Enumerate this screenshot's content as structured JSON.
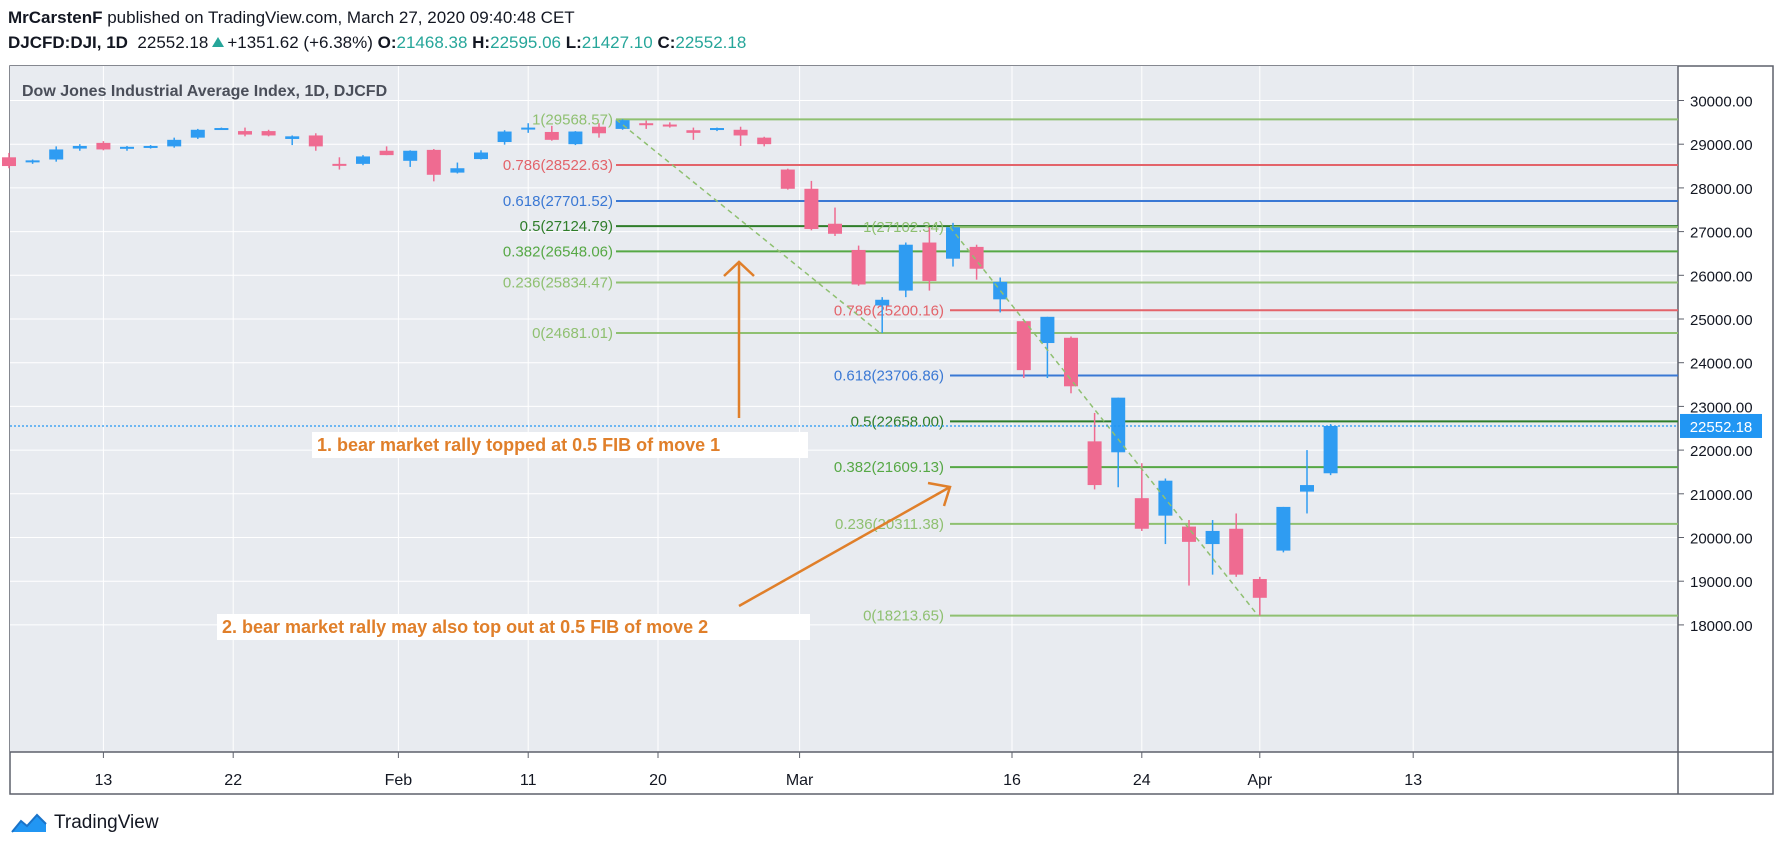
{
  "header": {
    "author": "MrCarstenF",
    "published_text": "published on TradingView.com, March 27, 2020 09:40:48 CET",
    "symbol": "DJCFD:DJI, 1D",
    "last": "22552.18",
    "change": "+1351.62 (+6.38%)",
    "o_label": "O:",
    "o": "21468.38",
    "h_label": "H:",
    "h": "22595.06",
    "l_label": "L:",
    "l": "21427.10",
    "c_label": "C:",
    "c": "22552.18"
  },
  "footer": {
    "brand": "TradingView"
  },
  "colors": {
    "up": "#2f9cf2",
    "down": "#ef6b91",
    "grid": "#e8ebf0",
    "axis": "#5d606b",
    "fib_1": "#8fc071",
    "fib_786": "#e3636a",
    "fib_618": "#3a78d4",
    "fib_5": "#2f7d2a",
    "fib_382": "#56a845",
    "fib_236": "#8fc071",
    "fib_0": "#8fc071",
    "annotation": "#e07f2a",
    "price_tag": "#2196f3"
  },
  "chart_data": {
    "type": "candlestick",
    "title": "Dow Jones Industrial Average Index, 1D, DJCFD",
    "ylim": [
      17000,
      30800
    ],
    "y_ticks": [
      "30000.00",
      "29000.00",
      "28000.00",
      "27000.00",
      "26000.00",
      "25000.00",
      "24000.00",
      "23000.00",
      "22000.00",
      "21000.00",
      "20000.00",
      "19000.00",
      "18000.00"
    ],
    "x_ticks": [
      "13",
      "22",
      "Feb",
      "11",
      "20",
      "Mar",
      "16",
      "24",
      "Apr",
      "13"
    ],
    "last_price_label": "22552.18",
    "candles": [
      {
        "o": 28700,
        "h": 28800,
        "l": 28450,
        "c": 28500
      },
      {
        "o": 28600,
        "h": 28650,
        "l": 28550,
        "c": 28630
      },
      {
        "o": 28650,
        "h": 28950,
        "l": 28600,
        "c": 28880
      },
      {
        "o": 28900,
        "h": 29000,
        "l": 28850,
        "c": 28960
      },
      {
        "o": 29030,
        "h": 29070,
        "l": 28860,
        "c": 28880
      },
      {
        "o": 28900,
        "h": 28960,
        "l": 28850,
        "c": 28940
      },
      {
        "o": 28940,
        "h": 28980,
        "l": 28900,
        "c": 28960
      },
      {
        "o": 28950,
        "h": 29150,
        "l": 28920,
        "c": 29100
      },
      {
        "o": 29150,
        "h": 29350,
        "l": 29120,
        "c": 29330
      },
      {
        "o": 29350,
        "h": 29380,
        "l": 29330,
        "c": 29370
      },
      {
        "o": 29300,
        "h": 29380,
        "l": 29180,
        "c": 29220
      },
      {
        "o": 29300,
        "h": 29330,
        "l": 29180,
        "c": 29200
      },
      {
        "o": 29120,
        "h": 29200,
        "l": 28980,
        "c": 29180
      },
      {
        "o": 29200,
        "h": 29250,
        "l": 28850,
        "c": 28950
      },
      {
        "o": 28550,
        "h": 28700,
        "l": 28420,
        "c": 28530
      },
      {
        "o": 28550,
        "h": 28750,
        "l": 28520,
        "c": 28720
      },
      {
        "o": 28850,
        "h": 28950,
        "l": 28750,
        "c": 28750
      },
      {
        "o": 28620,
        "h": 28860,
        "l": 28480,
        "c": 28850
      },
      {
        "o": 28870,
        "h": 28890,
        "l": 28150,
        "c": 28300
      },
      {
        "o": 28350,
        "h": 28580,
        "l": 28330,
        "c": 28450
      },
      {
        "o": 28660,
        "h": 28860,
        "l": 28650,
        "c": 28810
      },
      {
        "o": 29050,
        "h": 29320,
        "l": 28990,
        "c": 29290
      },
      {
        "o": 29380,
        "h": 29480,
        "l": 29260,
        "c": 29380
      },
      {
        "o": 29280,
        "h": 29420,
        "l": 29080,
        "c": 29100
      },
      {
        "o": 29000,
        "h": 29300,
        "l": 28980,
        "c": 29290
      },
      {
        "o": 29400,
        "h": 29480,
        "l": 29150,
        "c": 29250
      },
      {
        "o": 29350,
        "h": 29570,
        "l": 29330,
        "c": 29550
      },
      {
        "o": 29480,
        "h": 29540,
        "l": 29350,
        "c": 29440
      },
      {
        "o": 29450,
        "h": 29500,
        "l": 29380,
        "c": 29420
      },
      {
        "o": 29320,
        "h": 29380,
        "l": 29100,
        "c": 29260
      },
      {
        "o": 29340,
        "h": 29380,
        "l": 29300,
        "c": 29370
      },
      {
        "o": 29330,
        "h": 29400,
        "l": 28960,
        "c": 29200
      },
      {
        "o": 29150,
        "h": 29170,
        "l": 28950,
        "c": 29000
      },
      {
        "o": 28420,
        "h": 28440,
        "l": 27960,
        "c": 27980
      },
      {
        "o": 27980,
        "h": 28160,
        "l": 27030,
        "c": 27060
      },
      {
        "o": 27180,
        "h": 27550,
        "l": 26900,
        "c": 26950
      },
      {
        "o": 26580,
        "h": 26680,
        "l": 25760,
        "c": 25790
      },
      {
        "o": 25310,
        "h": 25500,
        "l": 24680,
        "c": 25440
      },
      {
        "o": 25650,
        "h": 26750,
        "l": 25500,
        "c": 26700
      },
      {
        "o": 26750,
        "h": 27100,
        "l": 25650,
        "c": 25870
      },
      {
        "o": 26380,
        "h": 27200,
        "l": 26200,
        "c": 27100
      },
      {
        "o": 26650,
        "h": 26700,
        "l": 25900,
        "c": 26150
      },
      {
        "o": 25450,
        "h": 25950,
        "l": 25150,
        "c": 25850
      },
      {
        "o": 24950,
        "h": 24950,
        "l": 23650,
        "c": 23830
      },
      {
        "o": 24450,
        "h": 25050,
        "l": 23650,
        "c": 25050
      },
      {
        "o": 24570,
        "h": 24600,
        "l": 23300,
        "c": 23460
      },
      {
        "o": 22200,
        "h": 22850,
        "l": 21100,
        "c": 21200
      },
      {
        "o": 21950,
        "h": 23200,
        "l": 21150,
        "c": 23200
      },
      {
        "o": 20900,
        "h": 21700,
        "l": 20150,
        "c": 20200
      },
      {
        "o": 20500,
        "h": 21350,
        "l": 19850,
        "c": 21300
      },
      {
        "o": 20250,
        "h": 20400,
        "l": 18900,
        "c": 19900
      },
      {
        "o": 19850,
        "h": 20400,
        "l": 19150,
        "c": 20150
      },
      {
        "o": 20200,
        "h": 20550,
        "l": 19100,
        "c": 19150
      },
      {
        "o": 19050,
        "h": 19100,
        "l": 18213,
        "c": 18620
      },
      {
        "o": 19700,
        "h": 20700,
        "l": 19660,
        "c": 20700
      },
      {
        "o": 21050,
        "h": 22000,
        "l": 20550,
        "c": 21200
      },
      {
        "o": 21470,
        "h": 22595,
        "l": 21427,
        "c": 22552
      }
    ],
    "fib_levels": [
      {
        "label": "1(29568.57)",
        "value": 29568.57,
        "color": "#8fc071",
        "group": "A"
      },
      {
        "label": "0.786(28522.63)",
        "value": 28522.63,
        "color": "#e3636a",
        "group": "A"
      },
      {
        "label": "0.618(27701.52)",
        "value": 27701.52,
        "color": "#3a78d4",
        "group": "A"
      },
      {
        "label": "0.5(27124.79)",
        "value": 27124.79,
        "color": "#2f7d2a",
        "group": "A"
      },
      {
        "label": "0.382(26548.06)",
        "value": 26548.06,
        "color": "#56a845",
        "group": "A"
      },
      {
        "label": "0.236(25834.47)",
        "value": 25834.47,
        "color": "#8fc071",
        "group": "A"
      },
      {
        "label": "0(24681.01)",
        "value": 24681.01,
        "color": "#8fc071",
        "group": "A"
      },
      {
        "label": "1(27102.34)",
        "value": 27102.34,
        "color": "#8fc071",
        "group": "B"
      },
      {
        "label": "0.786(25200.16)",
        "value": 25200.16,
        "color": "#e3636a",
        "group": "B"
      },
      {
        "label": "0.618(23706.86)",
        "value": 23706.86,
        "color": "#3a78d4",
        "group": "B"
      },
      {
        "label": "0.5(22658.00)",
        "value": 22658.0,
        "color": "#2f7d2a",
        "group": "B"
      },
      {
        "label": "0.382(21609.13)",
        "value": 21609.13,
        "color": "#56a845",
        "group": "B"
      },
      {
        "label": "0.236(20311.38)",
        "value": 20311.38,
        "color": "#8fc071",
        "group": "B"
      },
      {
        "label": "0(18213.65)",
        "value": 18213.65,
        "color": "#8fc071",
        "group": "B"
      }
    ],
    "annotations": [
      "1. bear market rally topped at 0.5 FIB of move 1",
      "2. bear market rally may also top out at 0.5 FIB of move 2"
    ]
  }
}
